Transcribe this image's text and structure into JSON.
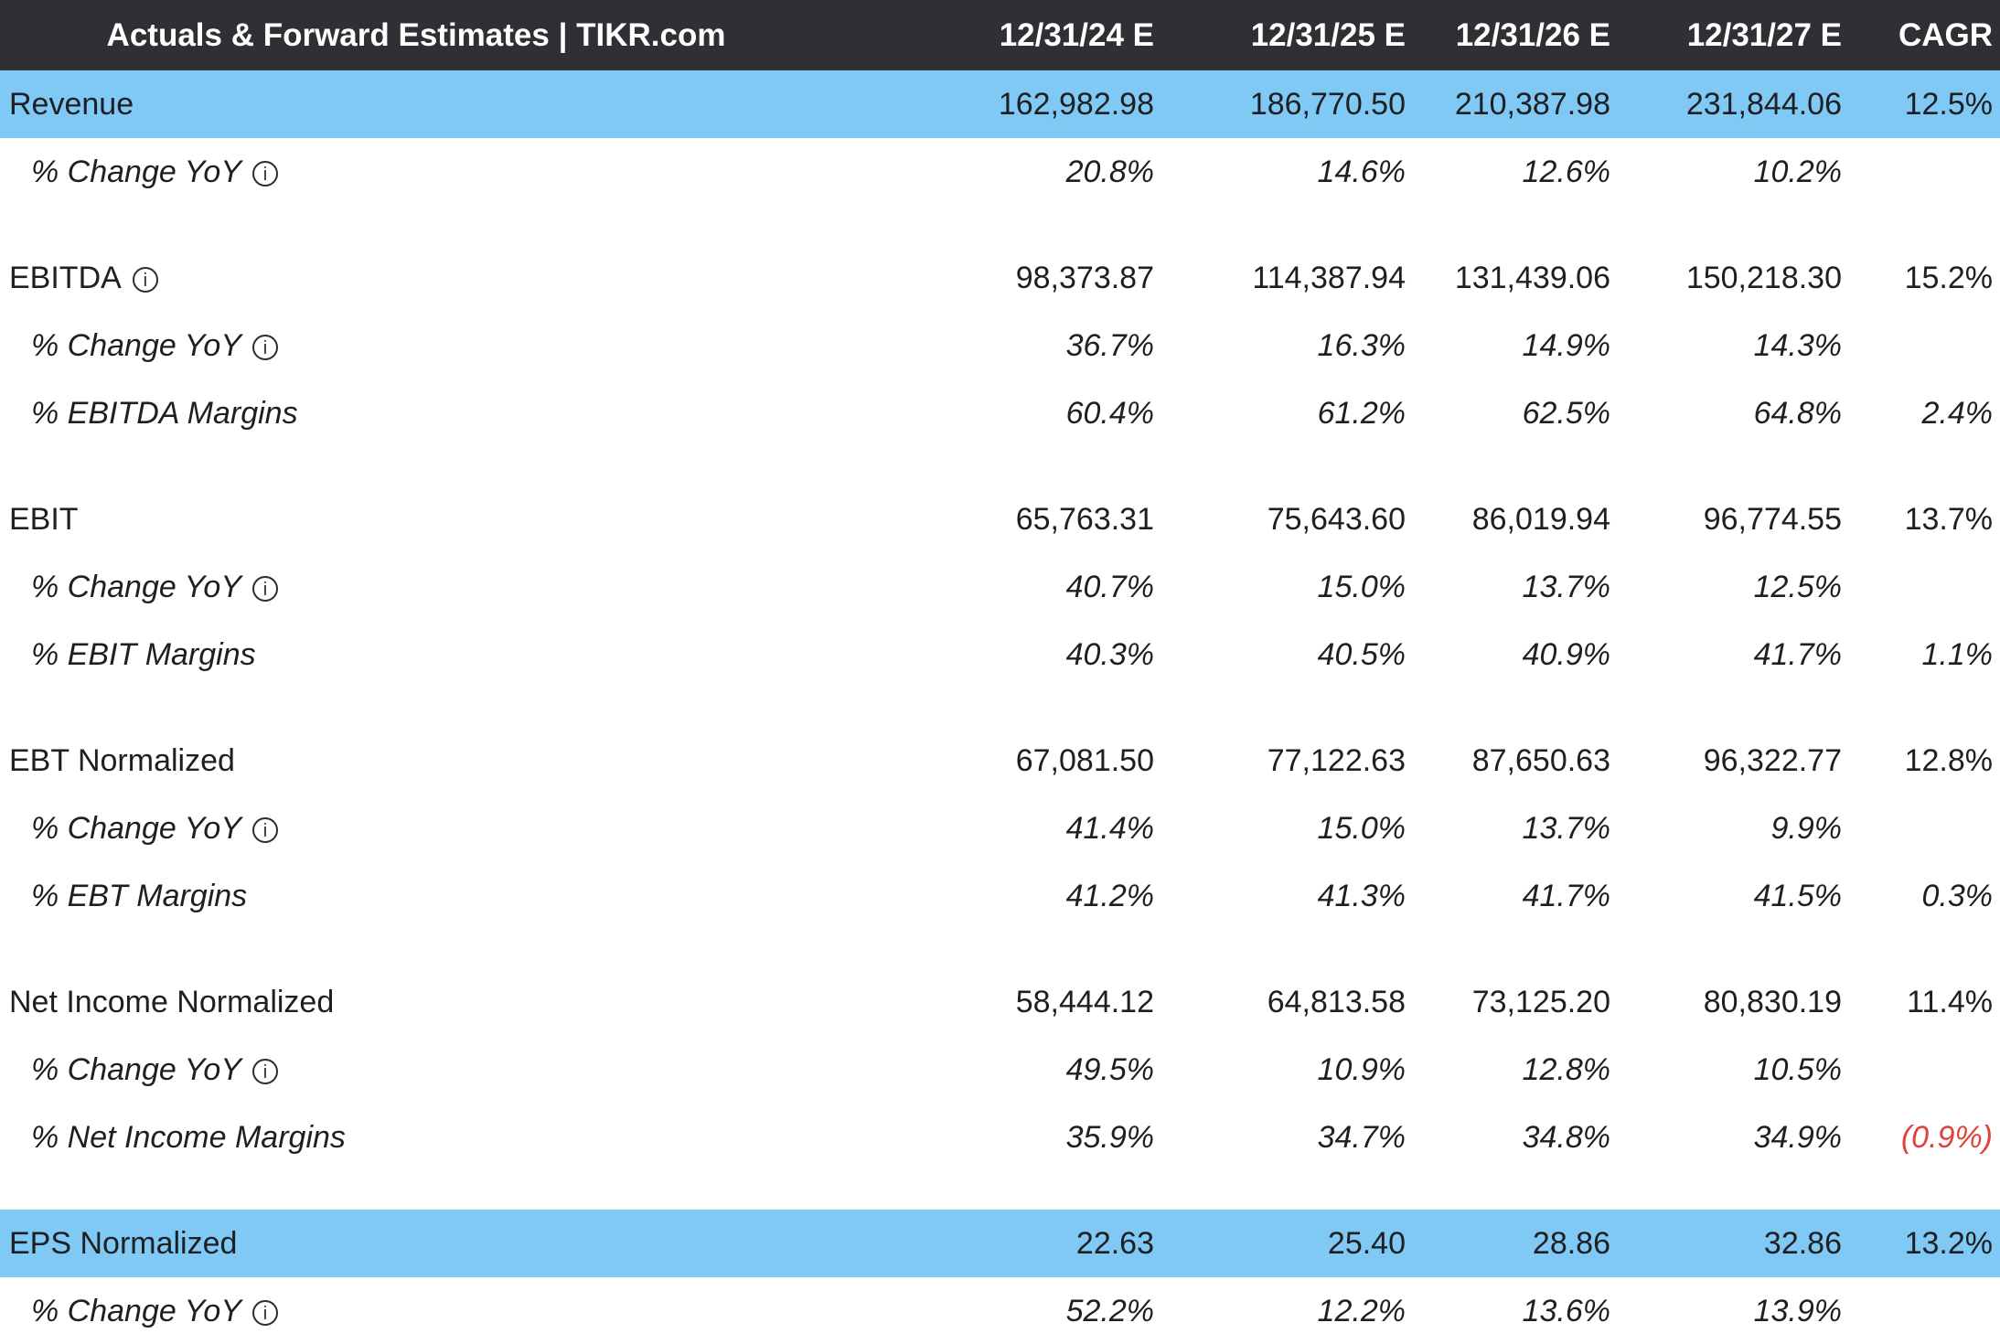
{
  "header": {
    "title": "Actuals & Forward Estimates | TIKR.com",
    "columns": [
      "12/31/24 E",
      "12/31/25 E",
      "12/31/26 E",
      "12/31/27 E",
      "CAGR"
    ]
  },
  "colors": {
    "header_bg": "#2f3033",
    "highlight_row": "#7fc9f4",
    "negative_value": "#e0423a"
  },
  "icons": {
    "info": "i"
  },
  "rows": [
    {
      "style": "metric",
      "highlight": true,
      "info": false,
      "label": "Revenue",
      "values": [
        "162,982.98",
        "186,770.50",
        "210,387.98",
        "231,844.06"
      ],
      "cagr": "12.5%",
      "cagr_negative": false
    },
    {
      "style": "sub",
      "highlight": false,
      "info": true,
      "label": "% Change YoY",
      "values": [
        "20.8%",
        "14.6%",
        "12.6%",
        "10.2%"
      ],
      "cagr": "",
      "cagr_negative": false
    },
    {
      "style": "spacer"
    },
    {
      "style": "metric",
      "highlight": false,
      "info": true,
      "label": "EBITDA",
      "values": [
        "98,373.87",
        "114,387.94",
        "131,439.06",
        "150,218.30"
      ],
      "cagr": "15.2%",
      "cagr_negative": false
    },
    {
      "style": "sub",
      "highlight": false,
      "info": true,
      "label": "% Change YoY",
      "values": [
        "36.7%",
        "16.3%",
        "14.9%",
        "14.3%"
      ],
      "cagr": "",
      "cagr_negative": false
    },
    {
      "style": "sub",
      "highlight": false,
      "info": false,
      "label": "% EBITDA Margins",
      "values": [
        "60.4%",
        "61.2%",
        "62.5%",
        "64.8%"
      ],
      "cagr": "2.4%",
      "cagr_negative": false
    },
    {
      "style": "spacer"
    },
    {
      "style": "metric",
      "highlight": false,
      "info": false,
      "label": "EBIT",
      "values": [
        "65,763.31",
        "75,643.60",
        "86,019.94",
        "96,774.55"
      ],
      "cagr": "13.7%",
      "cagr_negative": false
    },
    {
      "style": "sub",
      "highlight": false,
      "info": true,
      "label": "% Change YoY",
      "values": [
        "40.7%",
        "15.0%",
        "13.7%",
        "12.5%"
      ],
      "cagr": "",
      "cagr_negative": false
    },
    {
      "style": "sub",
      "highlight": false,
      "info": false,
      "label": "% EBIT Margins",
      "values": [
        "40.3%",
        "40.5%",
        "40.9%",
        "41.7%"
      ],
      "cagr": "1.1%",
      "cagr_negative": false
    },
    {
      "style": "spacer"
    },
    {
      "style": "metric",
      "highlight": false,
      "info": false,
      "label": "EBT Normalized",
      "values": [
        "67,081.50",
        "77,122.63",
        "87,650.63",
        "96,322.77"
      ],
      "cagr": "12.8%",
      "cagr_negative": false
    },
    {
      "style": "sub",
      "highlight": false,
      "info": true,
      "label": "% Change YoY",
      "values": [
        "41.4%",
        "15.0%",
        "13.7%",
        "9.9%"
      ],
      "cagr": "",
      "cagr_negative": false
    },
    {
      "style": "sub",
      "highlight": false,
      "info": false,
      "label": "% EBT Margins",
      "values": [
        "41.2%",
        "41.3%",
        "41.7%",
        "41.5%"
      ],
      "cagr": "0.3%",
      "cagr_negative": false
    },
    {
      "style": "spacer"
    },
    {
      "style": "metric",
      "highlight": false,
      "info": false,
      "label": "Net Income Normalized",
      "values": [
        "58,444.12",
        "64,813.58",
        "73,125.20",
        "80,830.19"
      ],
      "cagr": "11.4%",
      "cagr_negative": false
    },
    {
      "style": "sub",
      "highlight": false,
      "info": true,
      "label": "% Change YoY",
      "values": [
        "49.5%",
        "10.9%",
        "12.8%",
        "10.5%"
      ],
      "cagr": "",
      "cagr_negative": false
    },
    {
      "style": "sub",
      "highlight": false,
      "info": false,
      "label": "% Net Income Margins",
      "values": [
        "35.9%",
        "34.7%",
        "34.8%",
        "34.9%"
      ],
      "cagr": "(0.9%)",
      "cagr_negative": true
    },
    {
      "style": "spacer"
    },
    {
      "style": "metric",
      "highlight": true,
      "info": false,
      "label": "EPS Normalized",
      "values": [
        "22.63",
        "25.40",
        "28.86",
        "32.86"
      ],
      "cagr": "13.2%",
      "cagr_negative": false
    },
    {
      "style": "sub",
      "highlight": false,
      "info": true,
      "label": "% Change YoY",
      "values": [
        "52.2%",
        "12.2%",
        "13.6%",
        "13.9%"
      ],
      "cagr": "",
      "cagr_negative": false
    }
  ]
}
